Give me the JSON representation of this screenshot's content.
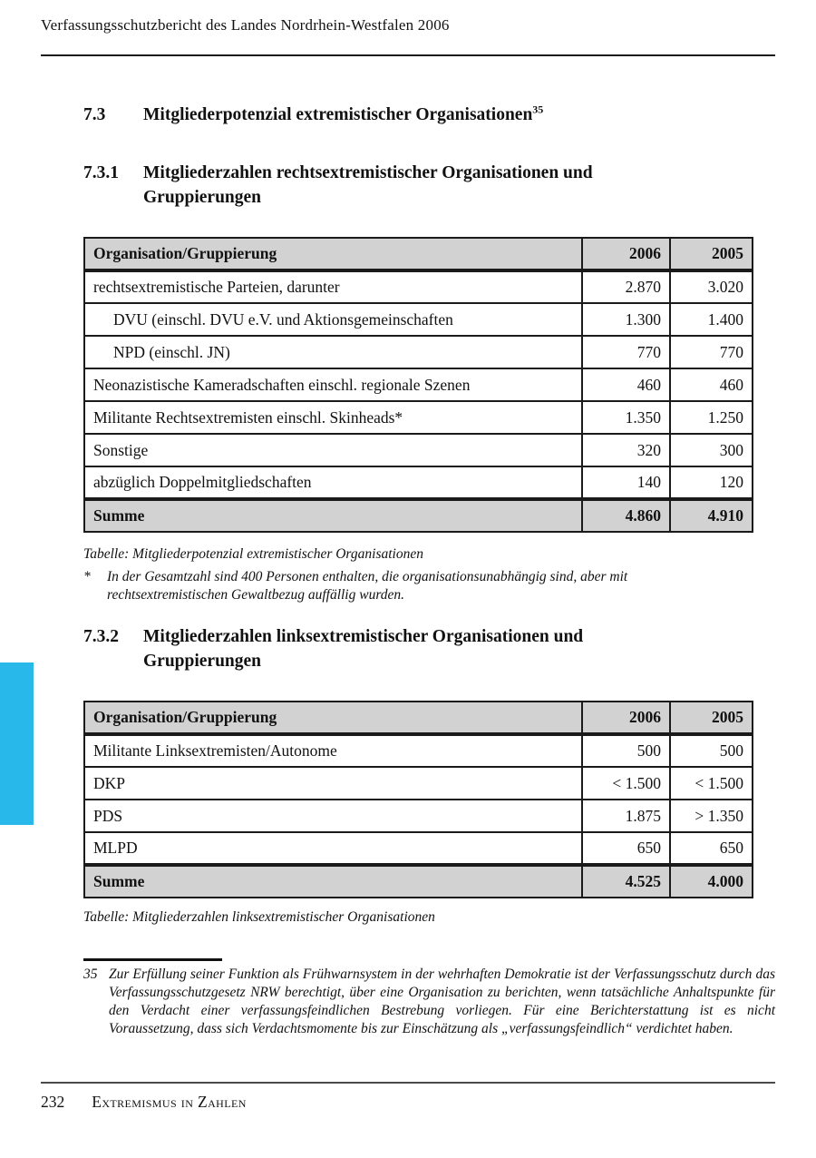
{
  "accent_color": "#29b8ea",
  "header": {
    "title": "Verfassungsschutzbericht des Landes Nordrhein-Westfalen 2006"
  },
  "section_73": {
    "number": "7.3",
    "title": "Mitgliederpotenzial extremistischer Organisationen",
    "footnote_ref": "35"
  },
  "section_731": {
    "number": "7.3.1",
    "title": "Mitgliederzahlen rechtsextremistischer Organisationen und Gruppierungen"
  },
  "section_732": {
    "number": "7.3.2",
    "title": "Mitgliederzahlen linksextremistischer Organisationen und Gruppierungen"
  },
  "table1": {
    "headers": [
      "Organisation/Gruppierung",
      "2006",
      "2005"
    ],
    "rows": [
      {
        "label": "rechtsextremistische Parteien, darunter",
        "v2006": "2.870",
        "v2005": "3.020"
      },
      {
        "label": "DVU (einschl. DVU e.V. und Aktionsgemeinschaften",
        "v2006": "1.300",
        "v2005": "1.400"
      },
      {
        "label": "NPD (einschl. JN)",
        "v2006": "770",
        "v2005": "770"
      },
      {
        "label": "Neonazistische Kameradschaften einschl. regionale Szenen",
        "v2006": "460",
        "v2005": "460"
      },
      {
        "label": "Militante Rechtsextremisten einschl. Skinheads*",
        "v2006": "1.350",
        "v2005": "1.250"
      },
      {
        "label": "Sonstige",
        "v2006": "320",
        "v2005": "300"
      },
      {
        "label": "abzüglich Doppelmitgliedschaften",
        "v2006": "140",
        "v2005": "120"
      }
    ],
    "summary": {
      "label": "Summe",
      "v2006": "4.860",
      "v2005": "4.910"
    },
    "caption": "Tabelle: Mitgliederpotenzial extremistischer Organisationen",
    "footnote_marker": "*",
    "footnote_text": "In der Gesamtzahl sind 400 Personen enthalten, die organisationsunabhängig sind, aber mit rechtsextremistischen Gewaltbezug auffällig wurden."
  },
  "table2": {
    "headers": [
      "Organisation/Gruppierung",
      "2006",
      "2005"
    ],
    "rows": [
      {
        "label": "Militante Linksextremisten/Autonome",
        "v2006": "500",
        "v2005": "500"
      },
      {
        "label": "DKP",
        "v2006": "< 1.500",
        "v2005": "< 1.500"
      },
      {
        "label": "PDS",
        "v2006": "1.875",
        "v2005": "> 1.350"
      },
      {
        "label": "MLPD",
        "v2006": "650",
        "v2005": "650"
      }
    ],
    "summary": {
      "label": "Summe",
      "v2006": "4.525",
      "v2005": "4.000"
    },
    "caption": "Tabelle: Mitgliederzahlen linksextremistischer Organisationen"
  },
  "footnote35": {
    "marker": "35",
    "text": "Zur Erfüllung seiner Funktion als Frühwarnsystem in der wehrhaften Demokratie ist der Verfassungsschutz durch das Verfassungsschutzgesetz NRW berechtigt, über eine Organisation zu berichten, wenn tatsächliche Anhaltspunkte für den Verdacht einer verfassungsfeindlichen Bestrebung vorliegen. Für eine Berichterstattung ist es nicht Voraussetzung, dass sich Verdachtsmomente bis zur Einschätzung als „verfassungsfeindlich“ verdichtet haben."
  },
  "footer": {
    "page_number": "232",
    "chapter_title": "Extremismus in Zahlen"
  }
}
